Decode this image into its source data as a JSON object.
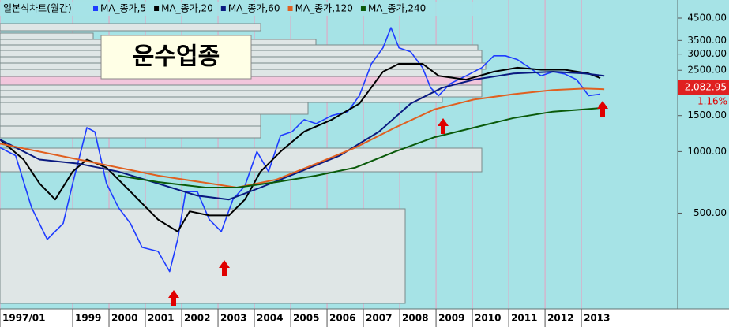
{
  "chart_data": {
    "type": "line",
    "title": "일본식차트(월간)",
    "annotation": "운수업종",
    "last_price": {
      "value": 2082.95,
      "label": "2,082.95"
    },
    "change": {
      "value": 1.16,
      "label": "1.16%"
    },
    "log_scale": true,
    "grid": true,
    "xlim": [
      1997,
      2015.65
    ],
    "xticks": [
      {
        "value": 1997,
        "label": "1997/01"
      },
      1999,
      2000,
      2001,
      2002,
      2003,
      2004,
      2005,
      2006,
      2007,
      2008,
      2009,
      2010,
      2011,
      2012,
      2013
    ],
    "ylim": [
      173,
      5280
    ],
    "yticks": [
      {
        "value": 500,
        "label": "500.00"
      },
      {
        "value": 1000,
        "label": "1000.00"
      },
      {
        "value": 1500,
        "label": "1500.00"
      },
      {
        "value": 2500,
        "label": "2500.00"
      },
      {
        "value": 3000,
        "label": "3000.00"
      },
      {
        "value": 3500,
        "label": "3500.00"
      },
      {
        "value": 4500,
        "label": "4500.00"
      }
    ],
    "series": [
      {
        "name": "MA_종가,5",
        "color": "#1e3cff",
        "x": [
          1997.0,
          1997.43,
          1997.87,
          1998.3,
          1998.74,
          1999.0,
          1999.39,
          1999.61,
          1999.93,
          2000.26,
          2000.59,
          2000.91,
          2001.35,
          2001.67,
          2001.89,
          2002.11,
          2002.43,
          2002.76,
          2003.09,
          2003.41,
          2003.74,
          2004.07,
          2004.39,
          2004.72,
          2005.04,
          2005.37,
          2005.7,
          2006.13,
          2006.57,
          2006.89,
          2007.22,
          2007.54,
          2007.76,
          2007.98,
          2008.3,
          2008.63,
          2008.85,
          2009.07,
          2009.39,
          2009.83,
          2010.26,
          2010.59,
          2010.91,
          2011.24,
          2011.57,
          2011.89,
          2012.22,
          2012.54,
          2012.87,
          2013.2,
          2013.52
        ],
        "values": [
          1045,
          956,
          532,
          372,
          445,
          698,
          1310,
          1250,
          698,
          532,
          445,
          340,
          325,
          259,
          372,
          637,
          637,
          465,
          406,
          583,
          680,
          1000,
          798,
          1197,
          1252,
          1433,
          1370,
          1500,
          1568,
          1878,
          2690,
          3220,
          4040,
          3220,
          3080,
          2575,
          2055,
          1878,
          2150,
          2350,
          2575,
          2945,
          2945,
          2820,
          2575,
          2350,
          2460,
          2400,
          2250,
          1878,
          1910
        ]
      },
      {
        "name": "MA_종가,20",
        "color": "#000000",
        "x": [
          1997.0,
          1997.65,
          1998.09,
          1998.52,
          1999.0,
          1999.39,
          1999.93,
          2000.59,
          2001.35,
          2001.89,
          2002.22,
          2002.76,
          2003.3,
          2003.74,
          2004.17,
          2004.72,
          2005.37,
          2006.13,
          2006.89,
          2007.54,
          2007.98,
          2008.63,
          2009.07,
          2009.83,
          2010.59,
          2011.24,
          2011.89,
          2012.54,
          2013.2,
          2013.52
        ],
        "values": [
          1145,
          914,
          698,
          583,
          798,
          914,
          835,
          637,
          465,
          406,
          510,
          487,
          487,
          583,
          798,
          1000,
          1252,
          1433,
          1717,
          2460,
          2690,
          2690,
          2350,
          2250,
          2460,
          2575,
          2515,
          2515,
          2410,
          2290
        ]
      },
      {
        "name": "MA_종가,60",
        "color": "#0a1a80",
        "x": [
          1997.0,
          1998.09,
          1999.17,
          2000.26,
          2001.35,
          2002.43,
          2003.3,
          2004.17,
          2005.26,
          2006.35,
          2007.43,
          2008.3,
          2009.17,
          2010.04,
          2011.13,
          2012.22,
          2013.09,
          2013.63
        ],
        "values": [
          1145,
          914,
          872,
          798,
          698,
          609,
          583,
          667,
          798,
          956,
          1252,
          1717,
          2055,
          2250,
          2410,
          2460,
          2410,
          2350
        ]
      },
      {
        "name": "MA_종가,120",
        "color": "#e06020",
        "x": [
          1997.0,
          1999.17,
          2001.35,
          2003.52,
          2004.61,
          2005.7,
          2006.78,
          2007.87,
          2008.96,
          2010.04,
          2011.13,
          2012.22,
          2013.09,
          2013.63
        ],
        "values": [
          1094,
          914,
          763,
          667,
          730,
          872,
          1046,
          1310,
          1611,
          1797,
          1910,
          2000,
          2035,
          2020
        ]
      },
      {
        "name": "MA_종가,240",
        "color": "#0a5a0a",
        "x": [
          2000.26,
          2001.35,
          2002.65,
          2003.52,
          2004.61,
          2005.7,
          2006.78,
          2007.87,
          2008.96,
          2010.04,
          2011.13,
          2012.22,
          2013.09,
          2013.63
        ],
        "values": [
          763,
          710,
          667,
          667,
          710,
          763,
          835,
          1000,
          1176,
          1310,
          1460,
          1568,
          1611,
          1640
        ]
      }
    ]
  }
}
